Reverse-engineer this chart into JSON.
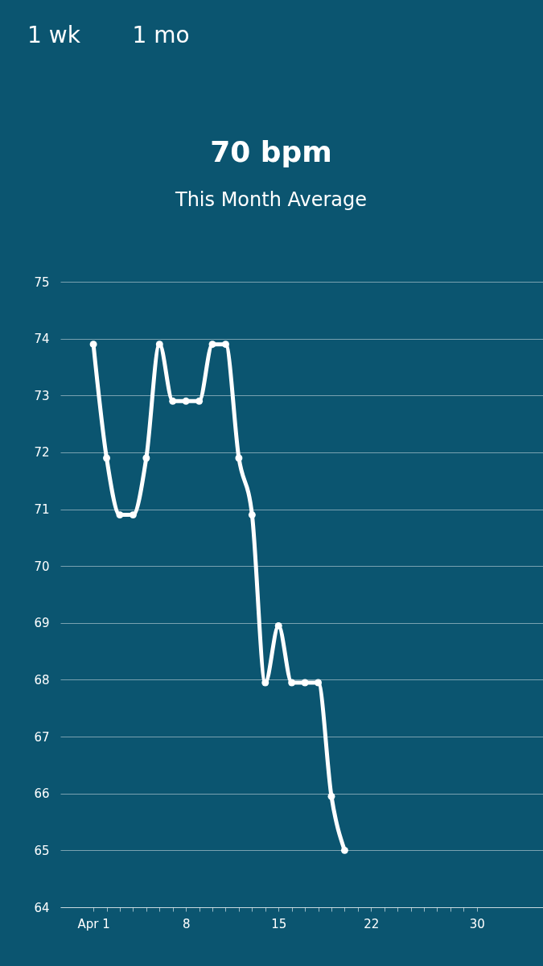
{
  "chart_data": {
    "type": "line",
    "title": "70 bpm",
    "subtitle": "This Month Average",
    "annotations": [
      "1 wk",
      "1 mo"
    ],
    "x": [
      1,
      2,
      3,
      4,
      5,
      6,
      7,
      8,
      9,
      10,
      11,
      12,
      13,
      14,
      15,
      16,
      17,
      18,
      19,
      20
    ],
    "series": [
      {
        "color": "#ffffff",
        "values": [
          73.9,
          71.9,
          70.9,
          70.9,
          71.9,
          73.9,
          72.9,
          72.9,
          72.9,
          73.9,
          73.9,
          71.9,
          70.9,
          67.95,
          68.95,
          67.95,
          67.95,
          67.95,
          65.95,
          65.0
        ]
      }
    ],
    "xlim": [
      -1.5,
      35
    ],
    "xticks": [
      {
        "value": 1,
        "label": "Apr 1"
      },
      {
        "value": 2,
        "label": null
      },
      {
        "value": 3,
        "label": null
      },
      {
        "value": 4,
        "label": null
      },
      {
        "value": 5,
        "label": null
      },
      {
        "value": 6,
        "label": null
      },
      {
        "value": 7,
        "label": null
      },
      8,
      {
        "value": 9,
        "label": null
      },
      {
        "value": 10,
        "label": null
      },
      {
        "value": 11,
        "label": null
      },
      {
        "value": 12,
        "label": null
      },
      {
        "value": 13,
        "label": null
      },
      {
        "value": 14,
        "label": null
      },
      15,
      {
        "value": 16,
        "label": null
      },
      {
        "value": 17,
        "label": null
      },
      {
        "value": 18,
        "label": null
      },
      {
        "value": 19,
        "label": null
      },
      {
        "value": 20,
        "label": null
      },
      {
        "value": 21,
        "label": null
      },
      22,
      {
        "value": 23,
        "label": null
      },
      {
        "value": 24,
        "label": null
      },
      {
        "value": 25,
        "label": null
      },
      {
        "value": 26,
        "label": null
      },
      {
        "value": 27,
        "label": null
      },
      {
        "value": 28,
        "label": null
      },
      {
        "value": 29,
        "label": null
      },
      30
    ],
    "ylim": [
      64,
      75
    ],
    "yticks": [
      64,
      65,
      66,
      67,
      68,
      69,
      70,
      71,
      72,
      73,
      74,
      75
    ],
    "grid": "y",
    "marker": "circle",
    "line_style": "solid",
    "legend": false
  }
}
